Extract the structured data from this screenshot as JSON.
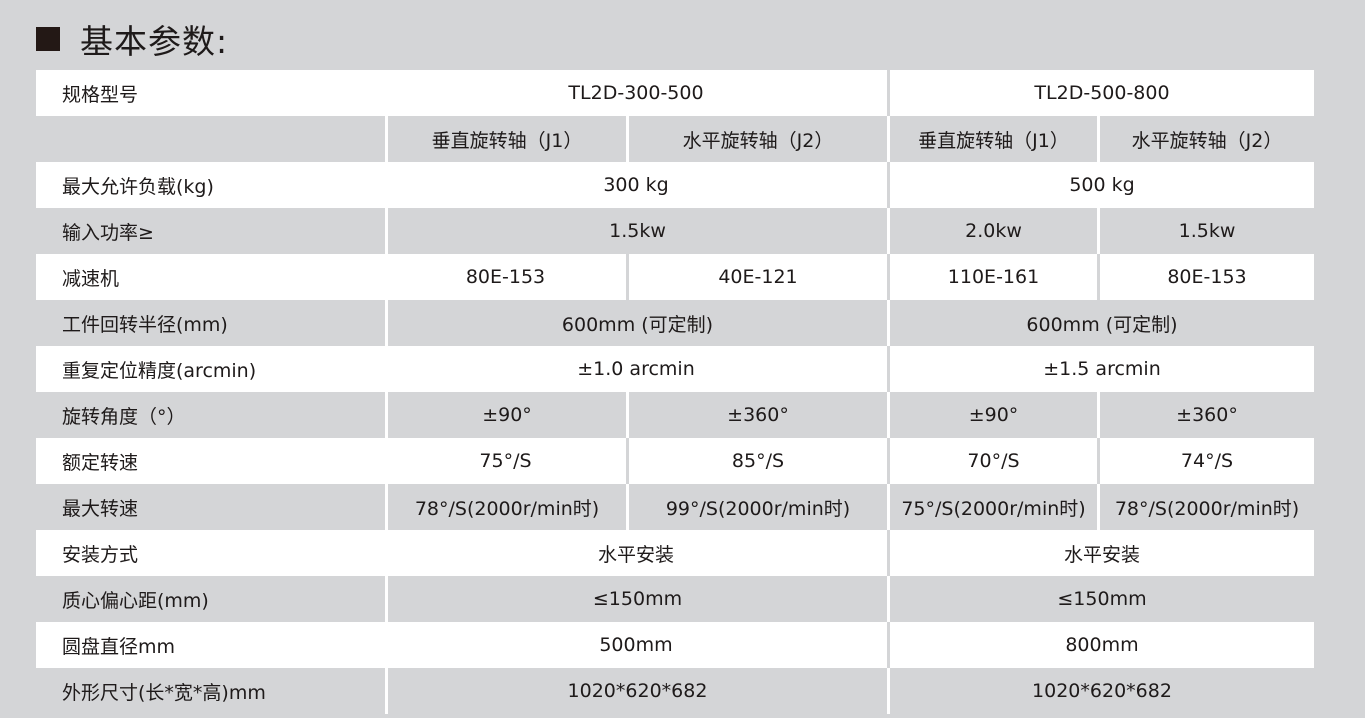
{
  "title": "基本参数:",
  "rows": [
    {
      "label": "规格型号",
      "tone": "white",
      "cells": [
        {
          "text": "TL2D-300-500",
          "span": 2
        },
        {
          "text": "TL2D-500-800",
          "span": 2
        }
      ]
    },
    {
      "label": "",
      "tone": "gray",
      "cells": [
        {
          "text": "垂直旋转轴（J1）",
          "span": 1
        },
        {
          "text": "水平旋转轴（J2）",
          "span": 1
        },
        {
          "text": "垂直旋转轴（J1）",
          "span": 1
        },
        {
          "text": "水平旋转轴（J2）",
          "span": 1
        }
      ]
    },
    {
      "label": "最大允许负载(kg)",
      "tone": "white",
      "cells": [
        {
          "text": "300 kg",
          "span": 2
        },
        {
          "text": "500 kg",
          "span": 2
        }
      ]
    },
    {
      "label": "输入功率≥",
      "tone": "gray",
      "cells": [
        {
          "text": "1.5kw",
          "span": 2
        },
        {
          "text": "2.0kw",
          "span": 1
        },
        {
          "text": "1.5kw",
          "span": 1
        }
      ]
    },
    {
      "label": "减速机",
      "tone": "white",
      "cells": [
        {
          "text": "80E-153",
          "span": 1
        },
        {
          "text": "40E-121",
          "span": 1
        },
        {
          "text": "110E-161",
          "span": 1
        },
        {
          "text": "80E-153",
          "span": 1
        }
      ]
    },
    {
      "label": "工件回转半径(mm)",
      "tone": "gray",
      "cells": [
        {
          "text": "600mm (可定制)",
          "span": 2
        },
        {
          "text": "600mm (可定制)",
          "span": 2
        }
      ]
    },
    {
      "label": "重复定位精度(arcmin)",
      "tone": "white",
      "cells": [
        {
          "text": "±1.0 arcmin",
          "span": 2
        },
        {
          "text": "±1.5 arcmin",
          "span": 2
        }
      ]
    },
    {
      "label": "旋转角度（°）",
      "tone": "gray",
      "cells": [
        {
          "text": "±90°",
          "span": 1
        },
        {
          "text": "±360°",
          "span": 1
        },
        {
          "text": "±90°",
          "span": 1
        },
        {
          "text": "±360°",
          "span": 1
        }
      ]
    },
    {
      "label": "额定转速",
      "tone": "white",
      "cells": [
        {
          "text": "75°/S",
          "span": 1
        },
        {
          "text": "85°/S",
          "span": 1
        },
        {
          "text": "70°/S",
          "span": 1
        },
        {
          "text": "74°/S",
          "span": 1
        }
      ]
    },
    {
      "label": "最大转速",
      "tone": "gray",
      "cells": [
        {
          "text": "78°/S(2000r/min时)",
          "span": 1
        },
        {
          "text": "99°/S(2000r/min时)",
          "span": 1
        },
        {
          "text": "75°/S(2000r/min时)",
          "span": 1
        },
        {
          "text": "78°/S(2000r/min时)",
          "span": 1
        }
      ]
    },
    {
      "label": "安装方式",
      "tone": "white",
      "cells": [
        {
          "text": "水平安装",
          "span": 2
        },
        {
          "text": "水平安装",
          "span": 2
        }
      ]
    },
    {
      "label": "质心偏心距(mm)",
      "tone": "gray",
      "cells": [
        {
          "text": "≤150mm",
          "span": 2
        },
        {
          "text": "≤150mm",
          "span": 2
        }
      ]
    },
    {
      "label": "圆盘直径mm",
      "tone": "white",
      "cells": [
        {
          "text": "500mm",
          "span": 2
        },
        {
          "text": "800mm",
          "span": 2
        }
      ]
    },
    {
      "label": "外形尺寸(长*宽*高)mm",
      "tone": "gray",
      "cells": [
        {
          "text": "1020*620*682",
          "span": 2
        },
        {
          "text": "1020*620*682",
          "span": 2
        }
      ]
    }
  ]
}
